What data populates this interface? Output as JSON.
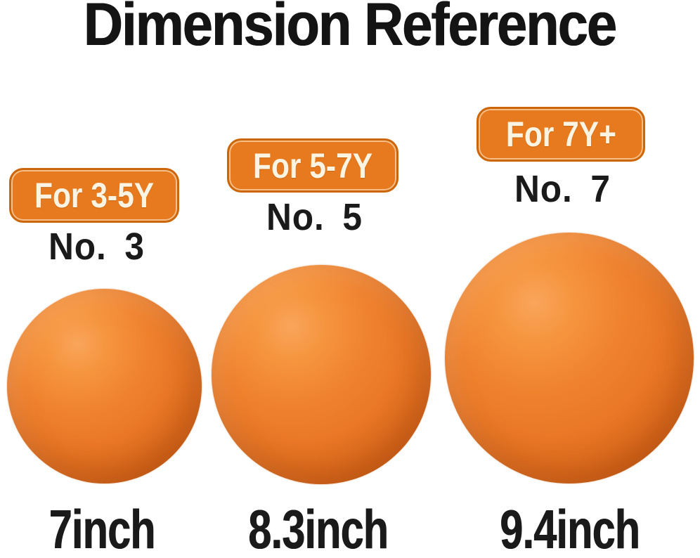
{
  "title": "Dimension Reference",
  "items": [
    {
      "badge": "For 3-5Y",
      "number": "No. 3",
      "size_label": "7inch"
    },
    {
      "badge": "For 5-7Y",
      "number": "No. 5",
      "size_label": "8.3inch"
    },
    {
      "badge": "For 7Y+",
      "number": "No. 7",
      "size_label": "9.4inch"
    }
  ],
  "colors": {
    "bg": "#ffffff",
    "title_text": "#141414",
    "badge_bg": "#e77a1e",
    "badge_border": "#cd6608",
    "badge_text": "#fbf4e2",
    "ball_highlight": "#f9a55b",
    "ball_main": "#ed7c2a",
    "ball_edge": "#bd540c"
  }
}
